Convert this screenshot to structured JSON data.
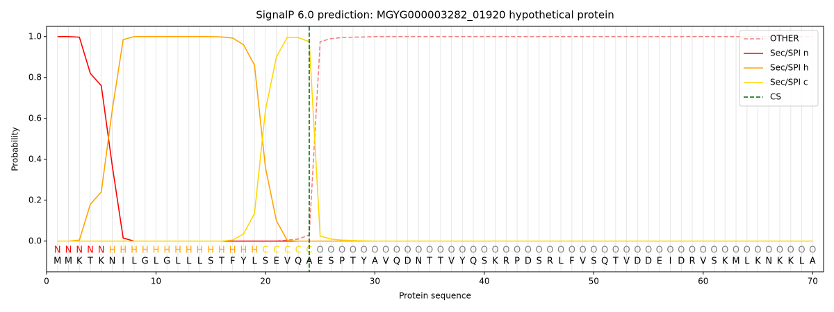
{
  "chart_data": {
    "type": "line",
    "title": "SignalP 6.0 prediction: MGYG000003282_01920 hypothetical protein",
    "x_label": "Protein sequence",
    "y_label": "Probability",
    "xlim": [
      0,
      71
    ],
    "ylim": [
      -0.15,
      1.05
    ],
    "xticks": [
      0,
      10,
      20,
      30,
      40,
      50,
      60,
      70
    ],
    "yticks": [
      {
        "value": 0,
        "label": "0.0"
      },
      {
        "value": 0.2,
        "label": "0.2"
      },
      {
        "value": 0.4,
        "label": "0.4"
      },
      {
        "value": 0.6,
        "label": "0.6"
      },
      {
        "value": 0.8,
        "label": "0.8"
      },
      {
        "value": 1.0,
        "label": "1.0"
      }
    ],
    "grid": true,
    "legend_position": "upper right",
    "x": [
      1,
      2,
      3,
      4,
      5,
      6,
      7,
      8,
      9,
      10,
      11,
      12,
      13,
      14,
      15,
      16,
      17,
      18,
      19,
      20,
      21,
      22,
      23,
      24,
      25,
      26,
      27,
      28,
      29,
      30,
      31,
      32,
      33,
      34,
      35,
      36,
      37,
      38,
      39,
      40,
      41,
      42,
      43,
      44,
      45,
      46,
      47,
      48,
      49,
      50,
      51,
      52,
      53,
      54,
      55,
      56,
      57,
      58,
      59,
      60,
      61,
      62,
      63,
      64,
      65,
      66,
      67,
      68,
      69,
      70
    ],
    "sequence": [
      "M",
      "M",
      "K",
      "T",
      "K",
      "N",
      "I",
      "L",
      "G",
      "L",
      "G",
      "L",
      "L",
      "L",
      "S",
      "T",
      "F",
      "Y",
      "L",
      "S",
      "E",
      "V",
      "Q",
      "A",
      "E",
      "S",
      "P",
      "T",
      "Y",
      "A",
      "V",
      "Q",
      "D",
      "N",
      "T",
      "T",
      "V",
      "Y",
      "Q",
      "S",
      "K",
      "R",
      "P",
      "D",
      "S",
      "R",
      "L",
      "F",
      "V",
      "S",
      "Q",
      "T",
      "V",
      "D",
      "D",
      "E",
      "I",
      "D",
      "R",
      "V",
      "S",
      "K",
      "M",
      "L",
      "K",
      "N",
      "K",
      "K",
      "L",
      "A"
    ],
    "regions": [
      "N",
      "N",
      "N",
      "N",
      "N",
      "H",
      "H",
      "H",
      "H",
      "H",
      "H",
      "H",
      "H",
      "H",
      "H",
      "H",
      "H",
      "H",
      "H",
      "C",
      "C",
      "C",
      "C",
      "C",
      "O",
      "O",
      "O",
      "O",
      "O",
      "O",
      "O",
      "O",
      "O",
      "O",
      "O",
      "O",
      "O",
      "O",
      "O",
      "O",
      "O",
      "O",
      "O",
      "O",
      "O",
      "O",
      "O",
      "O",
      "O",
      "O",
      "O",
      "O",
      "O",
      "O",
      "O",
      "O",
      "O",
      "O",
      "O",
      "O",
      "O",
      "O",
      "O",
      "O",
      "O",
      "O",
      "O",
      "O",
      "O",
      "O"
    ],
    "region_colors": {
      "N": "#ff0000",
      "H": "#ffa500",
      "C": "#ffd700",
      "O": "#808080"
    },
    "series": [
      {
        "name": "OTHER",
        "color": "#f08080",
        "dash": true,
        "values": [
          0,
          0,
          0,
          0,
          0,
          0,
          0,
          0,
          0,
          0,
          0,
          0,
          0,
          0,
          0,
          0,
          0,
          0,
          0,
          0,
          0,
          0.005,
          0.01,
          0.03,
          0.975,
          0.99,
          0.995,
          0.997,
          0.998,
          1,
          1,
          1,
          1,
          1,
          1,
          1,
          1,
          1,
          1,
          1,
          1,
          1,
          1,
          1,
          1,
          1,
          1,
          1,
          1,
          1,
          1,
          1,
          1,
          1,
          1,
          1,
          1,
          1,
          1,
          1,
          1,
          1,
          1,
          1,
          1,
          1,
          1,
          1,
          1,
          1
        ]
      },
      {
        "name": "Sec/SPI n",
        "color": "#ff0000",
        "values": [
          1,
          1,
          0.997,
          0.82,
          0.76,
          0.37,
          0.015,
          0,
          0,
          0,
          0,
          0,
          0,
          0,
          0,
          0,
          0,
          0,
          0,
          0,
          0,
          0,
          0,
          0,
          0,
          0,
          0,
          0,
          0,
          0,
          0,
          0,
          0,
          0,
          0,
          0,
          0,
          0,
          0,
          0,
          0,
          0,
          0,
          0,
          0,
          0,
          0,
          0,
          0,
          0,
          0,
          0,
          0,
          0,
          0,
          0,
          0,
          0,
          0,
          0,
          0,
          0,
          0,
          0,
          0,
          0,
          0,
          0,
          0,
          0
        ]
      },
      {
        "name": "Sec/SPI h",
        "color": "#ffa500",
        "values": [
          0,
          0,
          0.005,
          0.18,
          0.24,
          0.64,
          0.985,
          1,
          1,
          1,
          1,
          1,
          1,
          1,
          1,
          0.998,
          0.993,
          0.96,
          0.86,
          0.36,
          0.1,
          0.003,
          0,
          0,
          0,
          0,
          0,
          0,
          0,
          0,
          0,
          0,
          0,
          0,
          0,
          0,
          0,
          0,
          0,
          0,
          0,
          0,
          0,
          0,
          0,
          0,
          0,
          0,
          0,
          0,
          0,
          0,
          0,
          0,
          0,
          0,
          0,
          0,
          0,
          0,
          0,
          0,
          0,
          0,
          0,
          0,
          0,
          0,
          0,
          0
        ]
      },
      {
        "name": "Sec/SPI c",
        "color": "#ffd700",
        "values": [
          0,
          0,
          0,
          0,
          0,
          0,
          0,
          0,
          0,
          0,
          0,
          0,
          0,
          0,
          0,
          0,
          0.005,
          0.035,
          0.135,
          0.64,
          0.9,
          0.997,
          0.995,
          0.975,
          0.025,
          0.01,
          0.005,
          0.003,
          0.001,
          0,
          0,
          0,
          0,
          0,
          0,
          0,
          0,
          0,
          0,
          0,
          0,
          0,
          0,
          0,
          0,
          0,
          0,
          0,
          0,
          0,
          0,
          0,
          0,
          0,
          0,
          0,
          0,
          0,
          0,
          0,
          0,
          0,
          0,
          0,
          0,
          0,
          0,
          0,
          0,
          0
        ]
      }
    ],
    "cs": {
      "name": "CS",
      "x": 24,
      "color": "#006400"
    }
  }
}
